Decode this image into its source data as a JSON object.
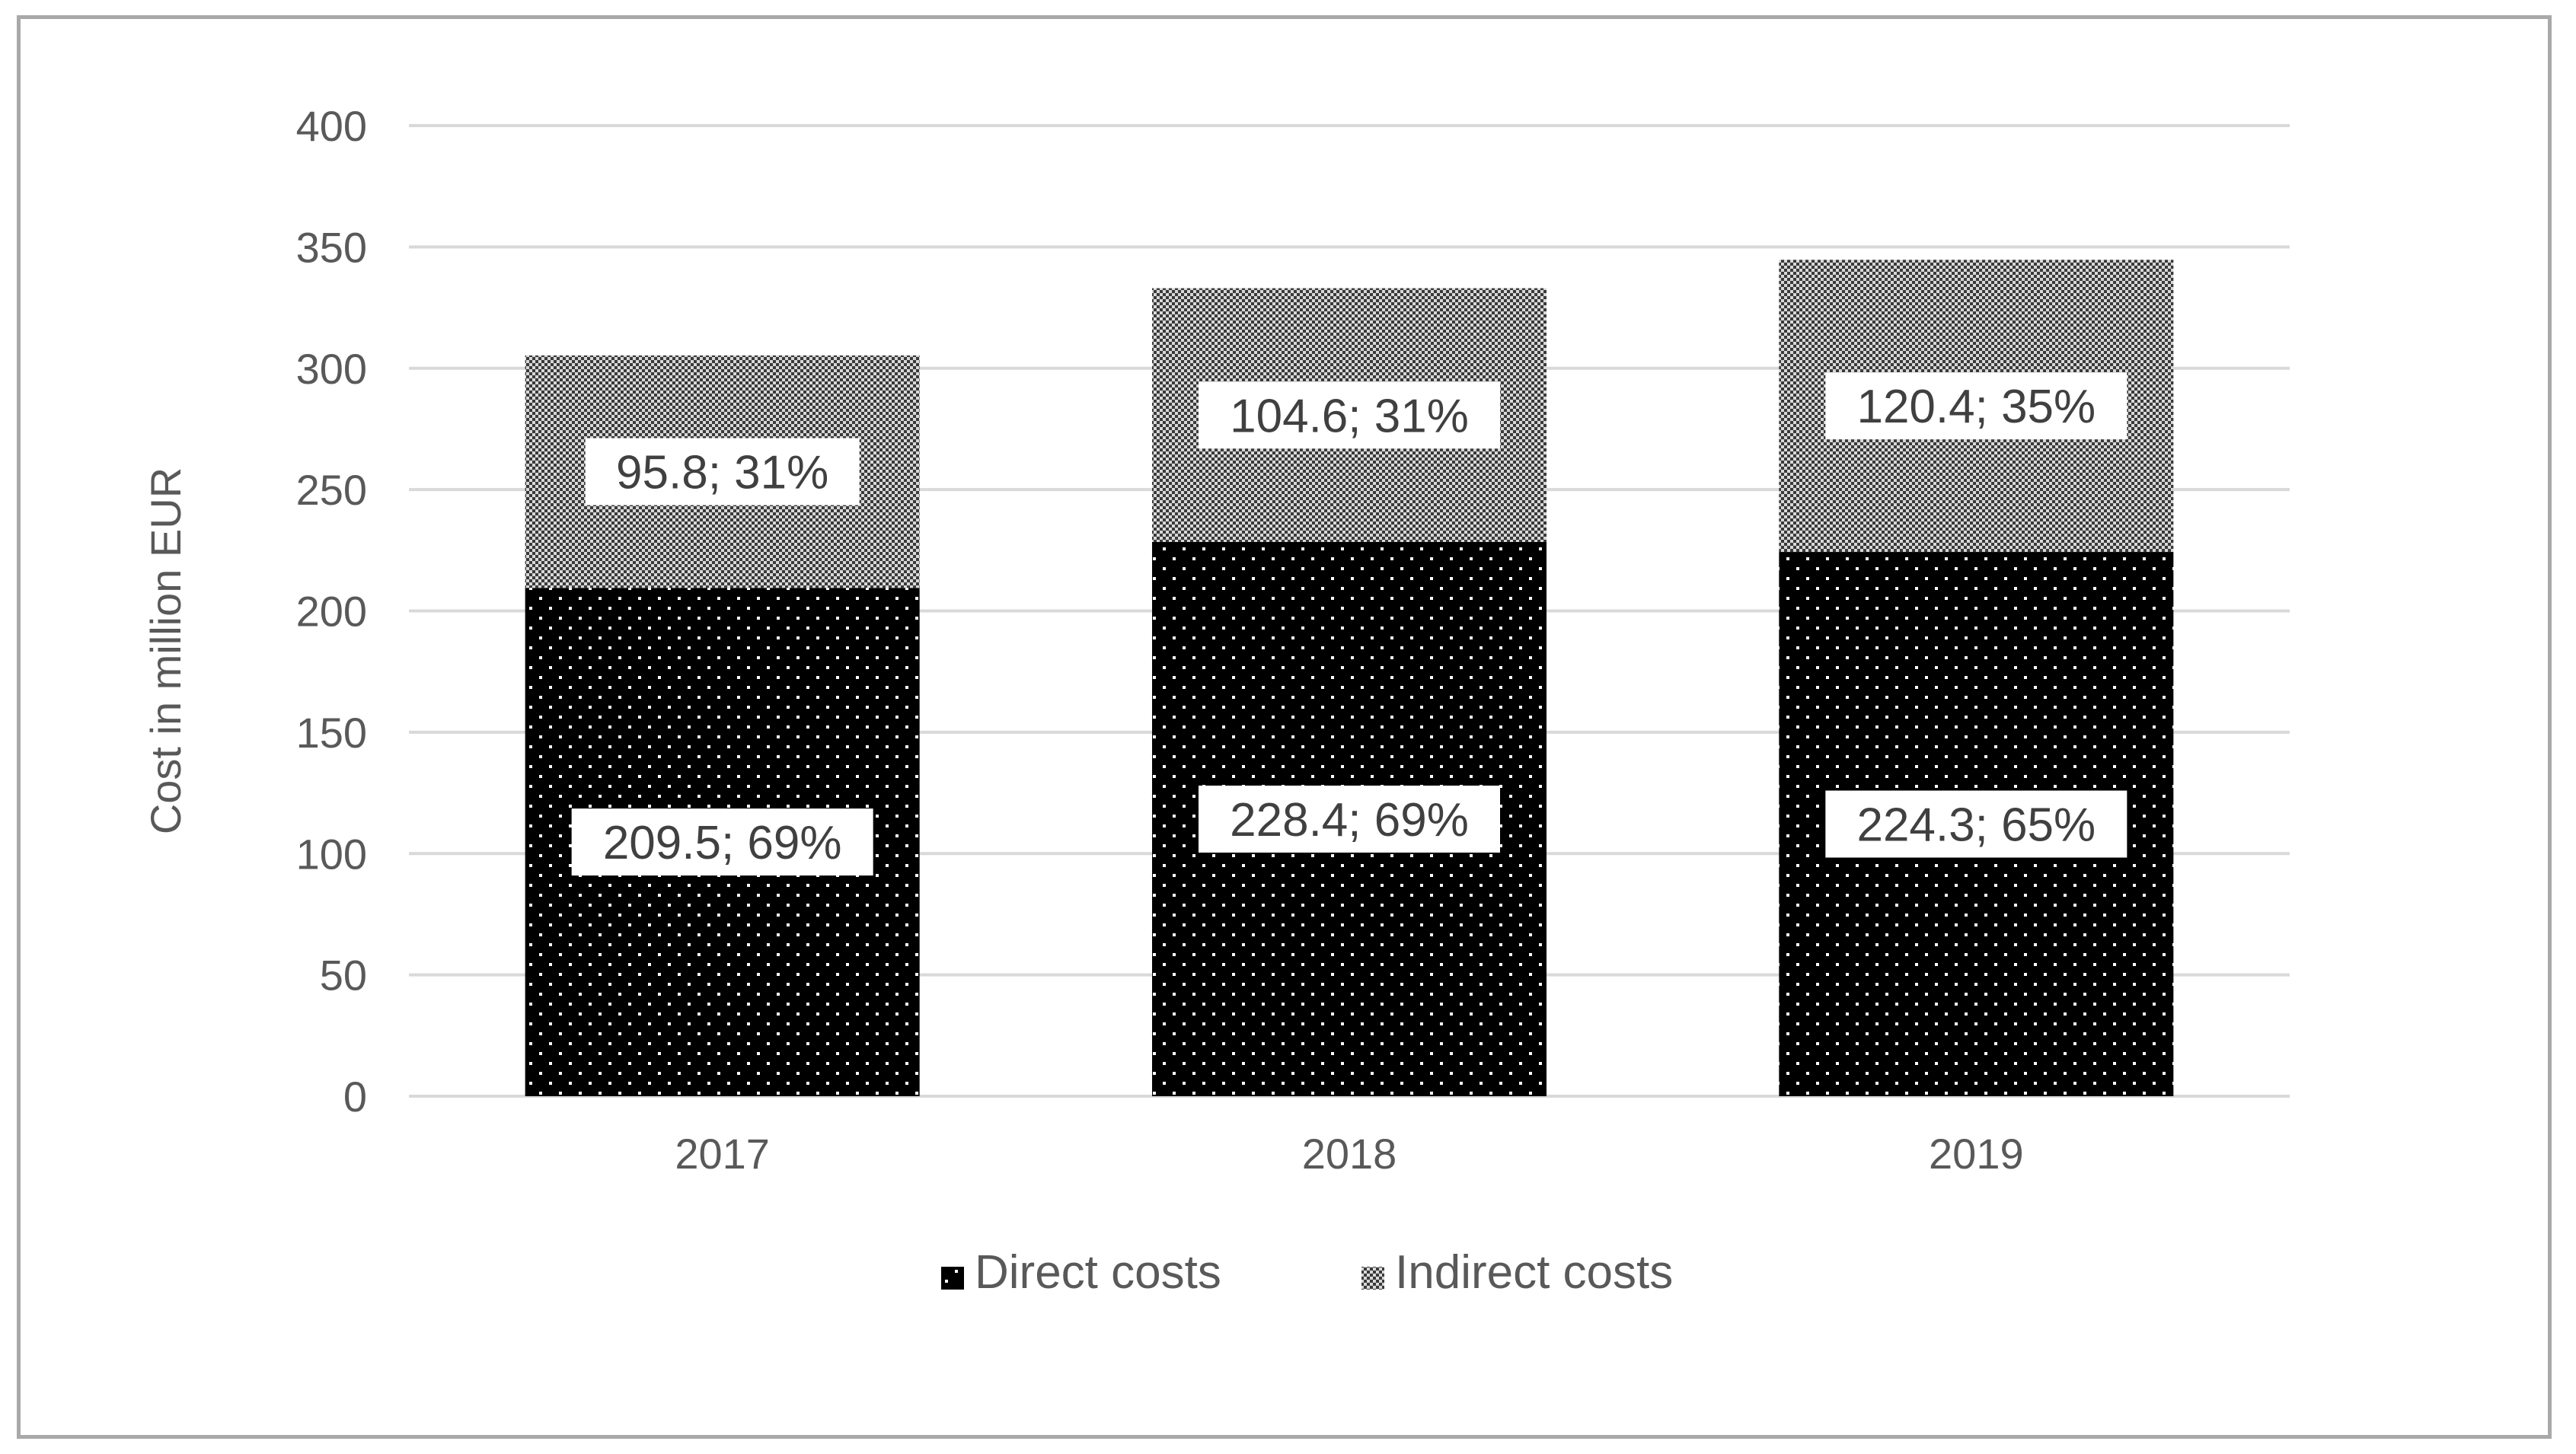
{
  "chart_data": {
    "type": "bar",
    "stacked": true,
    "categories": [
      "2017",
      "2018",
      "2019"
    ],
    "series": [
      {
        "name": "Direct costs",
        "values": [
          209.5,
          228.4,
          224.3
        ],
        "labels": [
          "209.5; 69%",
          "228.4; 69%",
          "224.3; 65%"
        ],
        "pattern": "dots-on-black"
      },
      {
        "name": "Indirect costs",
        "values": [
          95.8,
          104.6,
          120.4
        ],
        "labels": [
          "95.8; 31%",
          "104.6; 31%",
          "120.4; 35%"
        ],
        "pattern": "checker-gray"
      }
    ],
    "title": "",
    "xlabel": "",
    "ylabel": "Cost in million EUR",
    "ylim": [
      0,
      400
    ],
    "yticks": [
      0,
      50,
      100,
      150,
      200,
      250,
      300,
      350,
      400
    ],
    "grid": true,
    "legend_position": "bottom",
    "colors": {
      "gridline": "#d9d9d9",
      "text": "#595959",
      "label_text": "#404040",
      "label_box": "#ffffff",
      "direct_fill": "#000000",
      "direct_dot": "#ffffff",
      "indirect_dark": "#3a3a3a",
      "indirect_light": "#d8d8d8",
      "frame": "#a9a9a9"
    }
  }
}
